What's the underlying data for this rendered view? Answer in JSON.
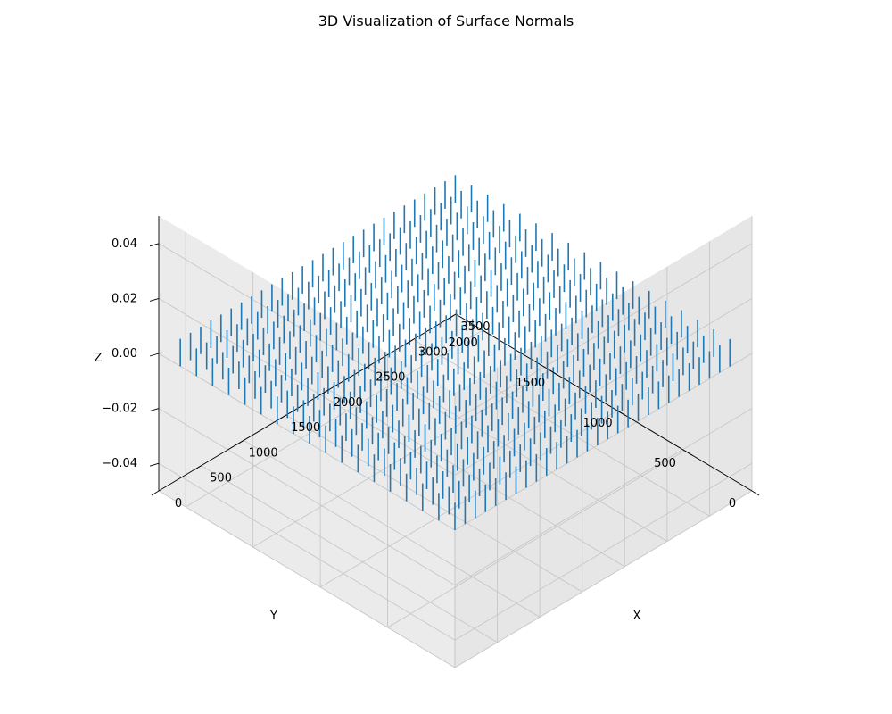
{
  "chart_data": {
    "type": "quiver3d",
    "title": "3D Visualization of Surface Normals",
    "xlabel": "X",
    "ylabel": "Y",
    "zlabel": "Z",
    "xlim": [
      0,
      3500
    ],
    "ylim": [
      0,
      2200
    ],
    "zlim": [
      -0.05,
      0.05
    ],
    "x_ticks": [
      "0",
      "500",
      "1000",
      "1500",
      "2000",
      "2500",
      "3000",
      "3500"
    ],
    "y_ticks": [
      "0",
      "500",
      "1000",
      "1500",
      "2000"
    ],
    "z_ticks": [
      "−0.04",
      "−0.02",
      "0.00",
      "0.02",
      "0.04"
    ],
    "grid": true,
    "series_color": "#1f77b4",
    "vectors": {
      "x_start": 0,
      "x_step": 120,
      "x_count": 28,
      "y_start": 0,
      "y_step": 120,
      "y_count": 18,
      "z": 0,
      "direction": [
        0,
        0,
        1
      ],
      "length": 0.01
    }
  }
}
